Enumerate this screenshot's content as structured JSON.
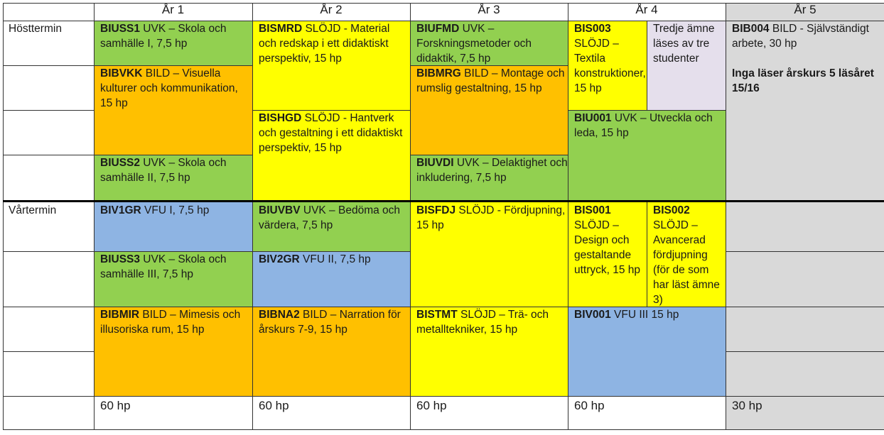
{
  "header": {
    "year1": "År 1",
    "year2": "År 2",
    "year3": "År 3",
    "year4": "År 4",
    "year5": "År 5"
  },
  "rows": {
    "autumn": "Hösttermin",
    "spring": "Vårtermin"
  },
  "courses": {
    "biuss1": {
      "code": "BIUSS1",
      "text": " UVK – Skola och samhälle I, 7,5 hp"
    },
    "bivkk": {
      "code": "BIBVKK",
      "text": " BILD – Visuella kulturer och kommunikation, 15 hp"
    },
    "biuss2": {
      "code": "BIUSS2",
      "text": " UVK  – Skola och samhälle II, 7,5 hp"
    },
    "bismrd": {
      "code": "BISMRD",
      "text": " SLÖJD - Material och redskap i ett didaktiskt perspektiv, 15 hp"
    },
    "bishgd": {
      "code": "BISHGD",
      "text": " SLÖJD - Hantverk och gestaltning i ett didaktiskt perspektiv, 15 hp"
    },
    "biufmd": {
      "code": "BIUFMD",
      "text": " UVK – Forskningsmetoder och didaktik, 7,5 hp"
    },
    "bibmrg": {
      "code": "BIBMRG",
      "text": " BILD – Montage och rumslig gestaltning, 15 hp"
    },
    "biuvdi": {
      "code": "BIUVDI",
      "text": " UVK – Delaktighet och inkludering, 7,5 hp"
    },
    "bis003": {
      "code": "BIS003",
      "text": " SLÖJD – Textila konstruktioner, 15 hp"
    },
    "third": {
      "text": "Tredje ämne läses av tre studenter"
    },
    "biu001": {
      "code": "BIU001",
      "text": " UVK – Utveckla och leda, 15 hp"
    },
    "bib004": {
      "code": "BIB004",
      "text": " BILD - Självständigt arbete, 30 hp",
      "note": "Inga läser årskurs 5 läsåret 15/16"
    },
    "biv1gr": {
      "code": "BIV1GR",
      "text": " VFU I, 7,5 hp"
    },
    "biuss3": {
      "code": "BIUSS3",
      "text": " UVK – Skola och samhälle III, 7,5 hp"
    },
    "bibmir": {
      "code": "BIBMIR",
      "text": " BILD – Mimesis och illusoriska rum, 15 hp"
    },
    "biuvbv": {
      "code": "BIUVBV",
      "text": " UVK – Bedöma och värdera, 7,5 hp"
    },
    "biv2gr": {
      "code": "BIV2GR",
      "text": " VFU II, 7,5 hp"
    },
    "bibna2": {
      "code": "BIBNA2",
      "text": " BILD – Narration för årskurs 7-9, 15 hp"
    },
    "bisfdj": {
      "code": "BISFDJ",
      "text": " SLÖJD - Fördjupning, 15 hp"
    },
    "bistmt": {
      "code": "BISTMT",
      "text": " SLÖJD – Trä- och metalltekniker, 15 hp"
    },
    "bis001": {
      "code": "BIS001",
      "text": " SLÖJD – Design och gestaltande uttryck, 15 hp"
    },
    "bis002": {
      "code": "BIS002",
      "text": " SLÖJD – Avancerad fördjupning (för de som har läst ämne 3)"
    },
    "biv001": {
      "code": "BIV001",
      "text": " VFU III 15 hp"
    }
  },
  "totals": {
    "y1": "60 hp",
    "y2": "60 hp",
    "y3": "60 hp",
    "y4": "60 hp",
    "y5": "30 hp"
  },
  "colors": {
    "green": "#92d050",
    "yellow": "#ffff00",
    "orange": "#ffc000",
    "blue": "#8eb4e3",
    "gray": "#d9d9d9",
    "lavender": "#e5dfec"
  }
}
